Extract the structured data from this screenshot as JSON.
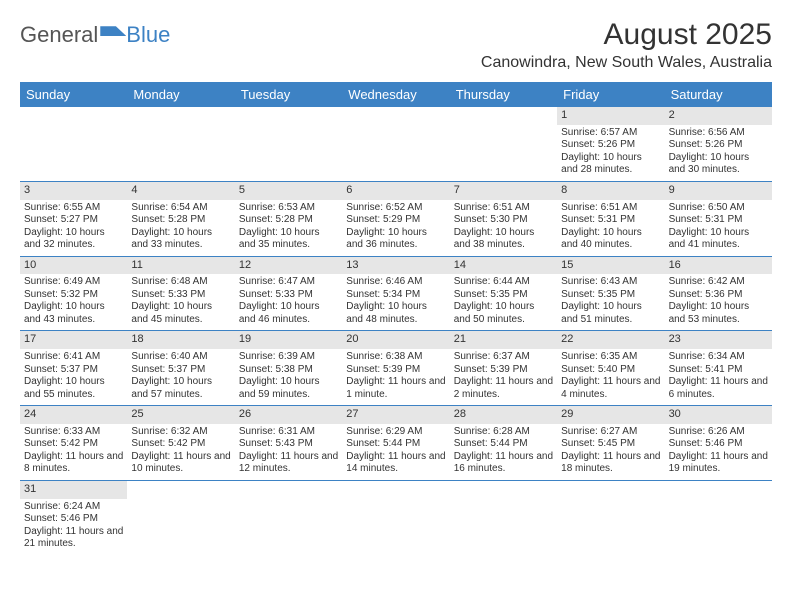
{
  "logo": {
    "part1": "General",
    "part2": "Blue"
  },
  "title": "August 2025",
  "location": "Canowindra, New South Wales, Australia",
  "colors": {
    "brand": "#3d82c4",
    "numbar": "#e6e6e6",
    "text": "#333333",
    "bg": "#ffffff"
  },
  "layout": {
    "cols": 7,
    "rows": 6
  },
  "day_labels": [
    "Sunday",
    "Monday",
    "Tuesday",
    "Wednesday",
    "Thursday",
    "Friday",
    "Saturday"
  ],
  "cells": [
    {
      "n": "",
      "sr": "",
      "ss": "",
      "dl": ""
    },
    {
      "n": "",
      "sr": "",
      "ss": "",
      "dl": ""
    },
    {
      "n": "",
      "sr": "",
      "ss": "",
      "dl": ""
    },
    {
      "n": "",
      "sr": "",
      "ss": "",
      "dl": ""
    },
    {
      "n": "",
      "sr": "",
      "ss": "",
      "dl": ""
    },
    {
      "n": "1",
      "sr": "Sunrise: 6:57 AM",
      "ss": "Sunset: 5:26 PM",
      "dl": "Daylight: 10 hours and 28 minutes."
    },
    {
      "n": "2",
      "sr": "Sunrise: 6:56 AM",
      "ss": "Sunset: 5:26 PM",
      "dl": "Daylight: 10 hours and 30 minutes."
    },
    {
      "n": "3",
      "sr": "Sunrise: 6:55 AM",
      "ss": "Sunset: 5:27 PM",
      "dl": "Daylight: 10 hours and 32 minutes."
    },
    {
      "n": "4",
      "sr": "Sunrise: 6:54 AM",
      "ss": "Sunset: 5:28 PM",
      "dl": "Daylight: 10 hours and 33 minutes."
    },
    {
      "n": "5",
      "sr": "Sunrise: 6:53 AM",
      "ss": "Sunset: 5:28 PM",
      "dl": "Daylight: 10 hours and 35 minutes."
    },
    {
      "n": "6",
      "sr": "Sunrise: 6:52 AM",
      "ss": "Sunset: 5:29 PM",
      "dl": "Daylight: 10 hours and 36 minutes."
    },
    {
      "n": "7",
      "sr": "Sunrise: 6:51 AM",
      "ss": "Sunset: 5:30 PM",
      "dl": "Daylight: 10 hours and 38 minutes."
    },
    {
      "n": "8",
      "sr": "Sunrise: 6:51 AM",
      "ss": "Sunset: 5:31 PM",
      "dl": "Daylight: 10 hours and 40 minutes."
    },
    {
      "n": "9",
      "sr": "Sunrise: 6:50 AM",
      "ss": "Sunset: 5:31 PM",
      "dl": "Daylight: 10 hours and 41 minutes."
    },
    {
      "n": "10",
      "sr": "Sunrise: 6:49 AM",
      "ss": "Sunset: 5:32 PM",
      "dl": "Daylight: 10 hours and 43 minutes."
    },
    {
      "n": "11",
      "sr": "Sunrise: 6:48 AM",
      "ss": "Sunset: 5:33 PM",
      "dl": "Daylight: 10 hours and 45 minutes."
    },
    {
      "n": "12",
      "sr": "Sunrise: 6:47 AM",
      "ss": "Sunset: 5:33 PM",
      "dl": "Daylight: 10 hours and 46 minutes."
    },
    {
      "n": "13",
      "sr": "Sunrise: 6:46 AM",
      "ss": "Sunset: 5:34 PM",
      "dl": "Daylight: 10 hours and 48 minutes."
    },
    {
      "n": "14",
      "sr": "Sunrise: 6:44 AM",
      "ss": "Sunset: 5:35 PM",
      "dl": "Daylight: 10 hours and 50 minutes."
    },
    {
      "n": "15",
      "sr": "Sunrise: 6:43 AM",
      "ss": "Sunset: 5:35 PM",
      "dl": "Daylight: 10 hours and 51 minutes."
    },
    {
      "n": "16",
      "sr": "Sunrise: 6:42 AM",
      "ss": "Sunset: 5:36 PM",
      "dl": "Daylight: 10 hours and 53 minutes."
    },
    {
      "n": "17",
      "sr": "Sunrise: 6:41 AM",
      "ss": "Sunset: 5:37 PM",
      "dl": "Daylight: 10 hours and 55 minutes."
    },
    {
      "n": "18",
      "sr": "Sunrise: 6:40 AM",
      "ss": "Sunset: 5:37 PM",
      "dl": "Daylight: 10 hours and 57 minutes."
    },
    {
      "n": "19",
      "sr": "Sunrise: 6:39 AM",
      "ss": "Sunset: 5:38 PM",
      "dl": "Daylight: 10 hours and 59 minutes."
    },
    {
      "n": "20",
      "sr": "Sunrise: 6:38 AM",
      "ss": "Sunset: 5:39 PM",
      "dl": "Daylight: 11 hours and 1 minute."
    },
    {
      "n": "21",
      "sr": "Sunrise: 6:37 AM",
      "ss": "Sunset: 5:39 PM",
      "dl": "Daylight: 11 hours and 2 minutes."
    },
    {
      "n": "22",
      "sr": "Sunrise: 6:35 AM",
      "ss": "Sunset: 5:40 PM",
      "dl": "Daylight: 11 hours and 4 minutes."
    },
    {
      "n": "23",
      "sr": "Sunrise: 6:34 AM",
      "ss": "Sunset: 5:41 PM",
      "dl": "Daylight: 11 hours and 6 minutes."
    },
    {
      "n": "24",
      "sr": "Sunrise: 6:33 AM",
      "ss": "Sunset: 5:42 PM",
      "dl": "Daylight: 11 hours and 8 minutes."
    },
    {
      "n": "25",
      "sr": "Sunrise: 6:32 AM",
      "ss": "Sunset: 5:42 PM",
      "dl": "Daylight: 11 hours and 10 minutes."
    },
    {
      "n": "26",
      "sr": "Sunrise: 6:31 AM",
      "ss": "Sunset: 5:43 PM",
      "dl": "Daylight: 11 hours and 12 minutes."
    },
    {
      "n": "27",
      "sr": "Sunrise: 6:29 AM",
      "ss": "Sunset: 5:44 PM",
      "dl": "Daylight: 11 hours and 14 minutes."
    },
    {
      "n": "28",
      "sr": "Sunrise: 6:28 AM",
      "ss": "Sunset: 5:44 PM",
      "dl": "Daylight: 11 hours and 16 minutes."
    },
    {
      "n": "29",
      "sr": "Sunrise: 6:27 AM",
      "ss": "Sunset: 5:45 PM",
      "dl": "Daylight: 11 hours and 18 minutes."
    },
    {
      "n": "30",
      "sr": "Sunrise: 6:26 AM",
      "ss": "Sunset: 5:46 PM",
      "dl": "Daylight: 11 hours and 19 minutes."
    },
    {
      "n": "31",
      "sr": "Sunrise: 6:24 AM",
      "ss": "Sunset: 5:46 PM",
      "dl": "Daylight: 11 hours and 21 minutes."
    },
    {
      "n": "",
      "sr": "",
      "ss": "",
      "dl": ""
    },
    {
      "n": "",
      "sr": "",
      "ss": "",
      "dl": ""
    },
    {
      "n": "",
      "sr": "",
      "ss": "",
      "dl": ""
    },
    {
      "n": "",
      "sr": "",
      "ss": "",
      "dl": ""
    },
    {
      "n": "",
      "sr": "",
      "ss": "",
      "dl": ""
    },
    {
      "n": "",
      "sr": "",
      "ss": "",
      "dl": ""
    }
  ]
}
